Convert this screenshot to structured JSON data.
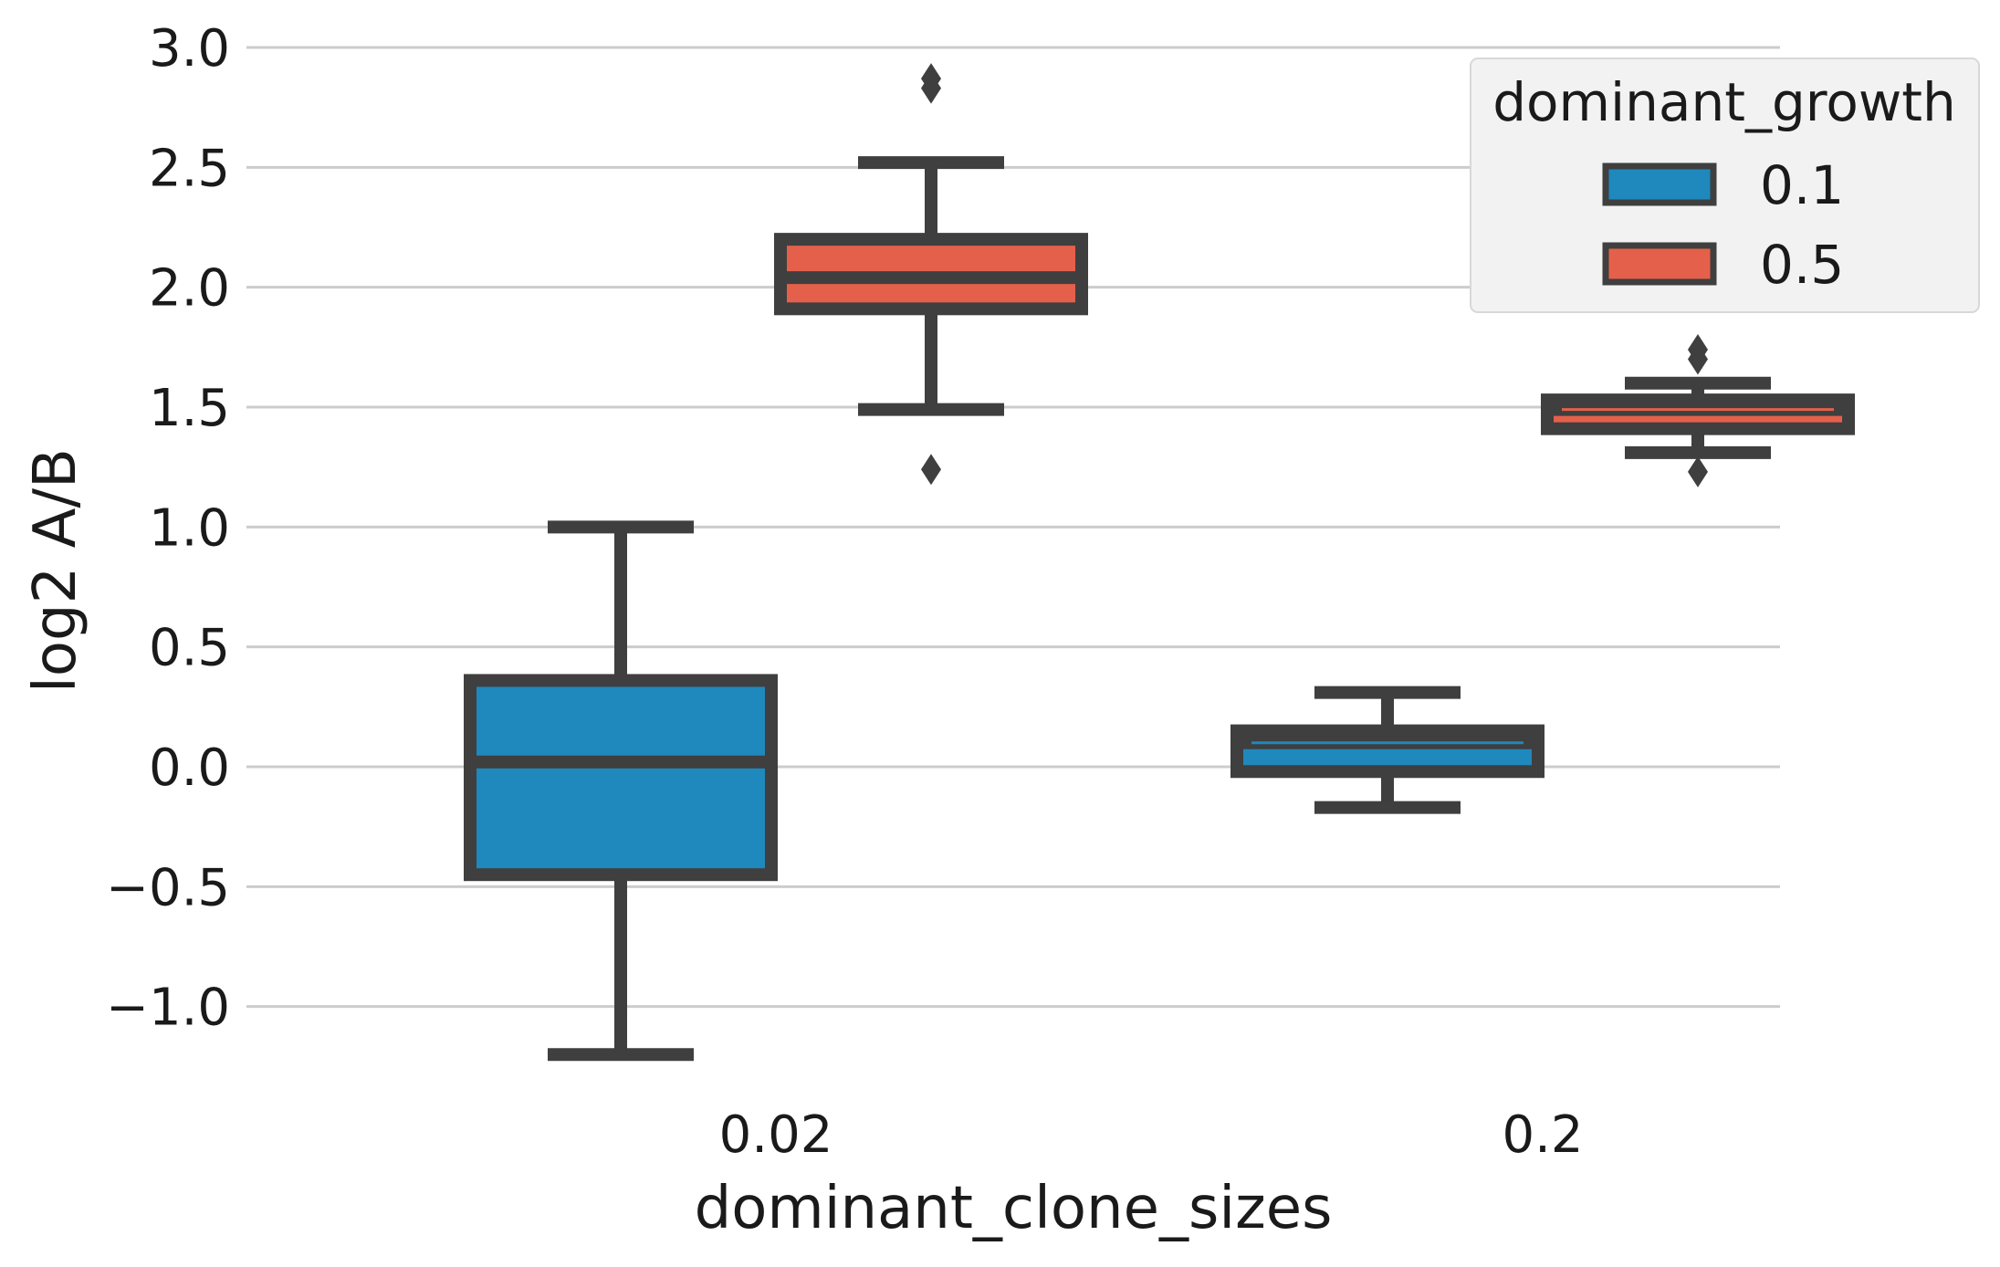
{
  "chart_data": {
    "type": "box",
    "xlabel": "dominant_clone_sizes",
    "ylabel": "log2 A/B",
    "categories": [
      "0.02",
      "0.2"
    ],
    "ylim": [
      -1.3,
      3.05
    ],
    "yticks": [
      -1.0,
      -0.5,
      0.0,
      0.5,
      1.0,
      1.5,
      2.0,
      2.5,
      3.0
    ],
    "ytick_labels": [
      "−1.0",
      "−0.5",
      "0.0",
      "0.5",
      "1.0",
      "1.5",
      "2.0",
      "2.5",
      "3.0"
    ],
    "grid": "horizontal",
    "legend": {
      "title": "dominant_growth",
      "placement": "top-right"
    },
    "series": [
      {
        "name": "0.1",
        "color": "#1f88bd",
        "boxes": [
          {
            "category": "0.02",
            "whisker_low": -1.2,
            "q1": -0.45,
            "median": 0.02,
            "q3": 0.36,
            "whisker_high": 1.0,
            "outliers": []
          },
          {
            "category": "0.2",
            "whisker_low": -0.17,
            "q1": -0.02,
            "median": 0.1,
            "q3": 0.15,
            "whisker_high": 0.31,
            "outliers": []
          }
        ]
      },
      {
        "name": "0.5",
        "color": "#e5604a",
        "boxes": [
          {
            "category": "0.02",
            "whisker_low": 1.49,
            "q1": 1.91,
            "median": 2.04,
            "q3": 2.2,
            "whisker_high": 2.52,
            "outliers": [
              2.83,
              2.87,
              1.24
            ]
          },
          {
            "category": "0.2",
            "whisker_low": 1.31,
            "q1": 1.41,
            "median": 1.49,
            "q3": 1.53,
            "whisker_high": 1.6,
            "outliers": [
              1.7,
              1.74,
              1.23
            ]
          }
        ]
      }
    ]
  },
  "colors": {
    "box_edge": "#3f3f3f",
    "grid": "#cccccc",
    "legend_bg": "#f2f2f2",
    "legend_border": "#d8d8d8"
  }
}
